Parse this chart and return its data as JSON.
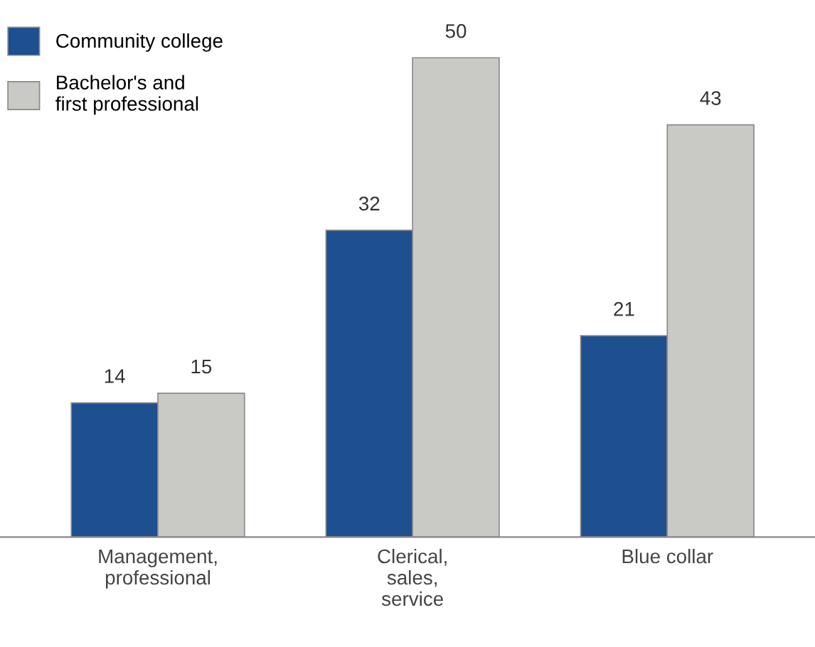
{
  "chart_data": {
    "type": "bar",
    "categories": [
      "Management,\nprofessional",
      "Clerical,\nsales,\nservice",
      "Blue collar"
    ],
    "series": [
      {
        "name": "Community college",
        "color": "#1e4f8f",
        "values": [
          14,
          32,
          21
        ]
      },
      {
        "name": "Bachelor's and\nfirst professional",
        "color": "#c9c9c6",
        "values": [
          15,
          50,
          43
        ]
      }
    ],
    "data_labels": true,
    "legend": "top left",
    "grid": false
  }
}
